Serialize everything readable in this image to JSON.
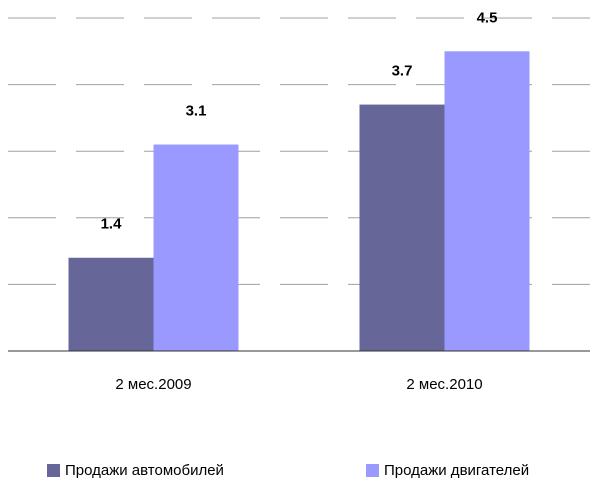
{
  "chart_data": {
    "type": "bar",
    "categories": [
      "2 мес.2009",
      "2 мес.2010"
    ],
    "series": [
      {
        "name": "Продажи автомобилей",
        "color": "#666699",
        "values": [
          1.4,
          3.7
        ]
      },
      {
        "name": "Продажи двигателей",
        "color": "#9999ff",
        "values": [
          3.1,
          4.5
        ]
      }
    ],
    "ylim": [
      0,
      5
    ],
    "yticks": [
      0,
      1,
      2,
      3,
      4,
      5
    ],
    "grid": true,
    "legend": "bottom"
  }
}
